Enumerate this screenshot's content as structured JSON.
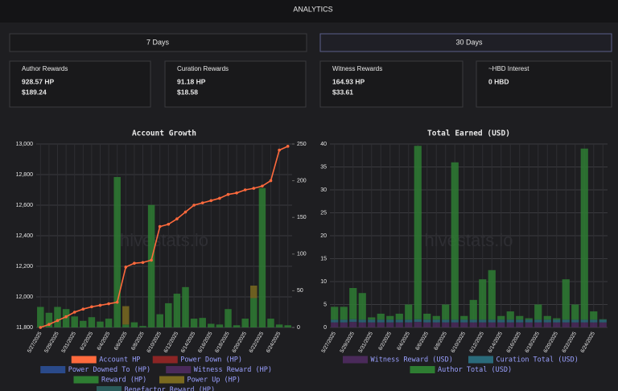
{
  "header": {
    "title": "ANALYTICS"
  },
  "tabs": [
    "7 Days",
    "30 Days"
  ],
  "cards": [
    {
      "label": "Author Rewards",
      "lines": [
        "928.57 HP",
        "$189.24"
      ]
    },
    {
      "label": "Curation Rewards",
      "lines": [
        "91.18 HP",
        "$18.58"
      ]
    },
    {
      "label": "Witness Rewards",
      "lines": [
        "164.93 HP",
        "$33.61"
      ]
    },
    {
      "label": "~HBD Interest",
      "lines": [
        "0 HBD"
      ]
    }
  ],
  "watermark": "hivestats.io",
  "chart_data": [
    {
      "type": "bar_line",
      "title": "Account Growth",
      "stacked": true,
      "grid": true,
      "categories": [
        "5/27/2025",
        null,
        "5/29/2025",
        null,
        "5/31/2025",
        null,
        "6/2/2025",
        null,
        "6/4/2025",
        null,
        "6/6/2025",
        null,
        "6/8/2025",
        null,
        "6/10/2025",
        null,
        "6/12/2025",
        null,
        "6/14/2025",
        null,
        "6/16/2025",
        null,
        "6/18/2025",
        null,
        "6/20/2025",
        null,
        "6/22/2025",
        null,
        "6/24/2025",
        null
      ],
      "ylim": [
        11800,
        13000
      ],
      "yticks": [
        {
          "value": 11800,
          "label": "11,800"
        },
        {
          "value": 12000,
          "label": "12,000"
        },
        {
          "value": 12200,
          "label": "12,200"
        },
        {
          "value": 12400,
          "label": "12,400"
        },
        {
          "value": 12600,
          "label": "12,600"
        },
        {
          "value": 12800,
          "label": "12,800"
        },
        {
          "value": 13000,
          "label": "13,000"
        }
      ],
      "y2lim": [
        0,
        250
      ],
      "y2ticks": [
        0,
        50,
        100,
        150,
        200,
        250
      ],
      "series": [
        {
          "name": "Account HP",
          "color": "#ff6a3d",
          "type": "line",
          "values": [
            11800,
            11820,
            11845,
            11870,
            11900,
            11920,
            11935,
            11945,
            11955,
            11965,
            12195,
            12220,
            12225,
            12240,
            12460,
            12475,
            12510,
            12555,
            12600,
            12615,
            12630,
            12645,
            12670,
            12680,
            12700,
            12710,
            12725,
            12760,
            12960,
            12985
          ]
        },
        {
          "name": "Power Down (HP)",
          "color": "#8b2525",
          "type": "bar",
          "axis": "y2",
          "values": [
            0,
            0,
            0,
            0,
            0,
            0,
            0,
            0,
            0,
            0,
            0,
            0,
            0,
            0,
            0,
            0,
            0,
            0,
            0,
            0,
            0,
            0,
            0,
            0,
            0,
            0,
            0,
            0,
            0,
            0
          ]
        },
        {
          "name": "Power Downed To (HP)",
          "color": "#2a4a8a",
          "type": "bar",
          "axis": "y2",
          "values": [
            0,
            0,
            0,
            0,
            0,
            0,
            0,
            0,
            0,
            0,
            0,
            0,
            0,
            0,
            0,
            0,
            0,
            0,
            0,
            0,
            0,
            0,
            0,
            0,
            0,
            0,
            0,
            0,
            0,
            0
          ]
        },
        {
          "name": "Witness Reward (HP)",
          "color": "#4a2a5a",
          "type": "bar",
          "axis": "y2",
          "values": [
            0,
            0,
            0,
            0,
            0,
            0,
            0,
            0,
            0,
            0,
            0,
            0,
            0,
            0,
            0,
            0,
            0,
            0,
            0,
            0,
            0,
            0,
            0,
            0,
            0,
            0,
            0,
            0,
            0,
            0
          ]
        },
        {
          "name": "Reward (HP)",
          "color": "#2e7d32",
          "type": "bar",
          "axis": "y2",
          "values": [
            28,
            20,
            28,
            25,
            15,
            9,
            14,
            8,
            12,
            205,
            4,
            7,
            2,
            167,
            18,
            33,
            46,
            55,
            12,
            13,
            5,
            4,
            25,
            3,
            12,
            40,
            190,
            12,
            4,
            3
          ]
        },
        {
          "name": "Power Up (HP)",
          "color": "#7a6a20",
          "type": "bar",
          "axis": "y2",
          "values": [
            0,
            0,
            0,
            0,
            0,
            0,
            0,
            0,
            0,
            0,
            25,
            0,
            0,
            0,
            0,
            0,
            0,
            0,
            0,
            0,
            0,
            0,
            0,
            0,
            0,
            17,
            0,
            0,
            0,
            0
          ]
        },
        {
          "name": "Benefactor Reward (HP)",
          "color": "#2a5a5a",
          "type": "bar",
          "axis": "y2",
          "values": [
            0,
            0,
            0,
            0,
            0,
            0,
            0,
            0,
            0,
            0,
            0,
            0,
            0,
            0,
            0,
            0,
            0,
            0,
            0,
            0,
            0,
            0,
            0,
            0,
            0,
            0,
            0,
            0,
            0,
            0
          ]
        }
      ]
    },
    {
      "type": "bar",
      "title": "Total Earned (USD)",
      "stacked": true,
      "grid": true,
      "categories": [
        "5/27/2025",
        null,
        "5/29/2025",
        null,
        "5/31/2025",
        null,
        "6/2/2025",
        null,
        "6/4/2025",
        null,
        "6/6/2025",
        null,
        "6/8/2025",
        null,
        "6/10/2025",
        null,
        "6/12/2025",
        null,
        "6/14/2025",
        null,
        "6/16/2025",
        null,
        "6/18/2025",
        null,
        "6/20/2025",
        null,
        "6/22/2025",
        null,
        "6/24/2025",
        null
      ],
      "ylim": [
        0,
        40
      ],
      "yticks": [
        0,
        5,
        10,
        15,
        20,
        25,
        30,
        35,
        40
      ],
      "series": [
        {
          "name": "Witness Reward (USD)",
          "color": "#4a2a5a",
          "type": "bar",
          "values": [
            1.1,
            1.1,
            1.2,
            1.1,
            1.1,
            1.1,
            1.1,
            1.1,
            1.1,
            1.2,
            1.1,
            1.1,
            1.1,
            1.1,
            1.1,
            1.1,
            1.1,
            1.1,
            1.1,
            1.1,
            1.1,
            1.1,
            1.1,
            1.1,
            1.1,
            1.1,
            1.1,
            1.1,
            1.1,
            1.1
          ]
        },
        {
          "name": "Curation Total (USD)",
          "color": "#2a6a7a",
          "type": "bar",
          "values": [
            0.6,
            0.6,
            0.6,
            0.6,
            0.6,
            0.6,
            0.6,
            0.6,
            0.6,
            0.6,
            0.6,
            0.6,
            0.6,
            0.6,
            0.6,
            0.6,
            0.6,
            0.6,
            0.6,
            0.6,
            0.6,
            0.6,
            0.6,
            0.6,
            0.6,
            0.6,
            0.6,
            0.6,
            0.6,
            0.6
          ]
        },
        {
          "name": "Author Total (USD)",
          "color": "#2e7d32",
          "type": "bar",
          "values": [
            2.8,
            2.8,
            6.8,
            5.8,
            0.5,
            1.3,
            0.8,
            1.3,
            3.3,
            37.8,
            1.3,
            0.8,
            3.3,
            34.3,
            0.8,
            4.3,
            8.8,
            10.8,
            0.8,
            1.8,
            0.8,
            0.3,
            3.3,
            0.8,
            0.3,
            8.8,
            3.3,
            37.3,
            1.8,
            0.1
          ]
        }
      ]
    }
  ]
}
